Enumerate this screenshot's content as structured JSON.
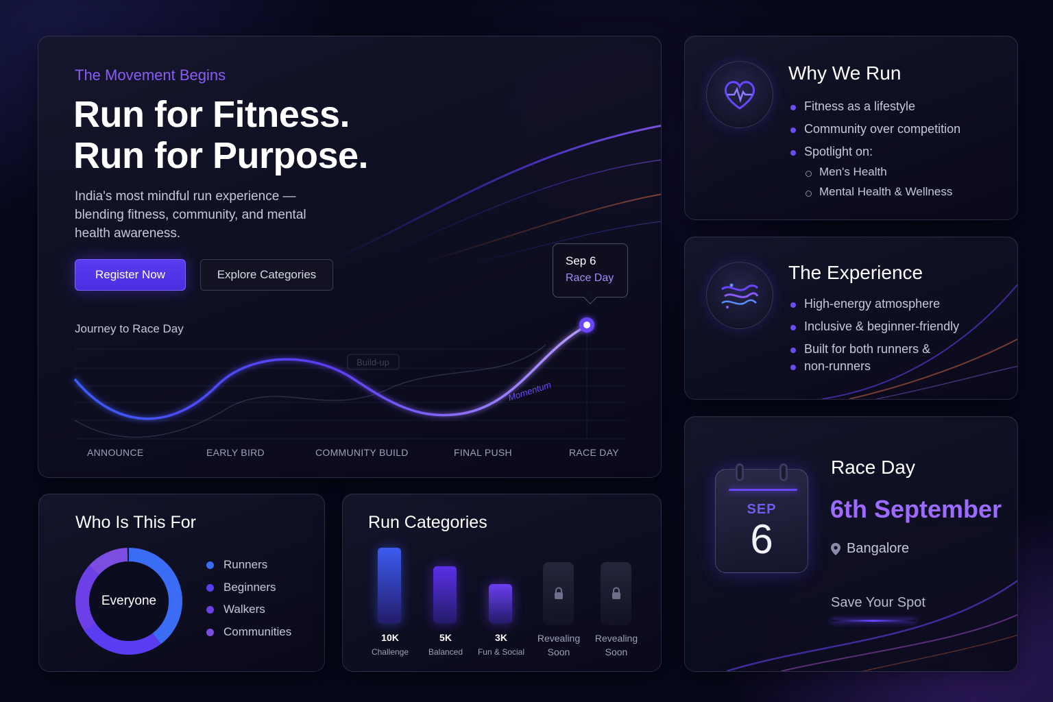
{
  "hero": {
    "eyebrow": "The Movement Begins",
    "title_line1": "Run for Fitness.",
    "title_line2": "Run for Purpose.",
    "subtitle": "India's most mindful run experience — blending fitness, community, and mental health awareness.",
    "register_label": "Register Now",
    "explore_label": "Explore Categories",
    "journey_label": "Journey to Race Day",
    "stages": [
      "ANNOUNCE",
      "EARLY BIRD",
      "COMMUNITY BUILD",
      "FINAL PUSH",
      "RACE DAY"
    ],
    "chart_annotations": {
      "buildup": "Build-up",
      "momentum": "Momentum"
    },
    "callout": {
      "date": "Sep 6",
      "label": "Race Day"
    }
  },
  "why": {
    "icon": "heart-pulse-icon",
    "title": "Why We Run",
    "items": [
      "Fitness as a lifestyle",
      "Community over competition",
      "Spotlight on:"
    ],
    "sub_items": [
      "Men's Health",
      "Mental Health & Wellness"
    ]
  },
  "experience": {
    "icon": "wind-flow-icon",
    "title": "The Experience",
    "items": [
      "High-energy atmosphere",
      "Inclusive & beginner-friendly",
      "Built for both runners &",
      "non-runners"
    ]
  },
  "raceday": {
    "calendar_month": "SEP",
    "calendar_day": "6",
    "title": "Race Day",
    "date": "6th September",
    "location": "Bangalore",
    "cta": "Save Your Spot"
  },
  "who": {
    "title": "Who Is This For",
    "center_label": "Everyone",
    "legend": [
      {
        "label": "Runners",
        "color": "#3b6cf5"
      },
      {
        "label": "Beginners",
        "color": "#5a3df0"
      },
      {
        "label": "Walkers",
        "color": "#6d3fe6"
      },
      {
        "label": "Communities",
        "color": "#7d4ce0"
      }
    ]
  },
  "categories": {
    "title": "Run Categories",
    "items": [
      {
        "name": "10K",
        "sub": "Challenge",
        "color": "#3b5cf0",
        "level": 1.0
      },
      {
        "name": "5K",
        "sub": "Balanced",
        "color": "#5a2fe8",
        "level": 0.75
      },
      {
        "name": "3K",
        "sub": "Fun & Social",
        "color": "#6a3ff0",
        "level": 0.52
      }
    ],
    "locked": [
      {
        "line1": "Revealing",
        "line2": "Soon"
      },
      {
        "line1": "Revealing",
        "line2": "Soon"
      }
    ]
  }
}
